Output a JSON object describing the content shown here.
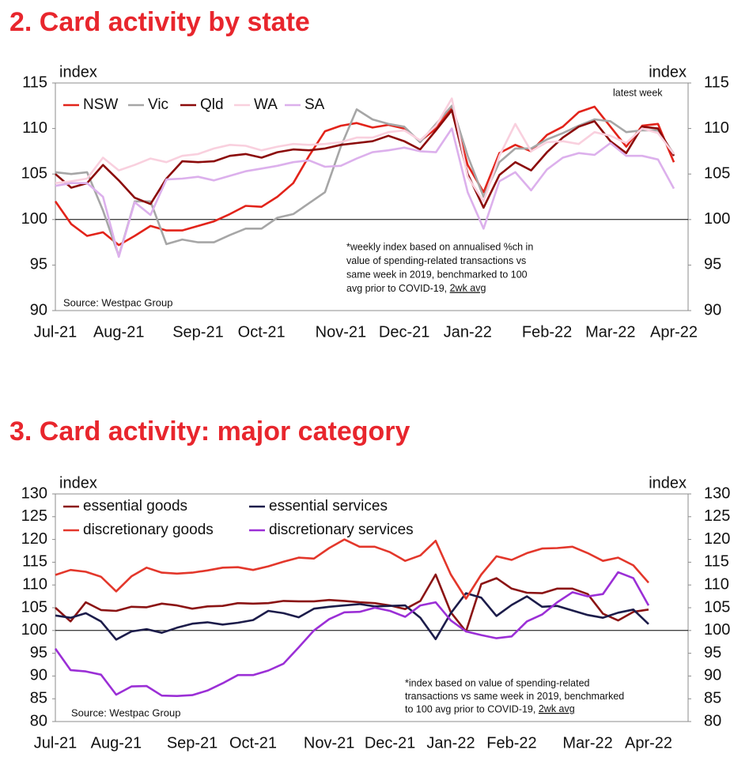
{
  "chart_data": [
    {
      "type": "line",
      "title": "2. Card activity by state",
      "ylabel": "index",
      "y2label": "index",
      "categories": [
        "Jul-21",
        null,
        null,
        null,
        "Aug-21",
        null,
        null,
        null,
        null,
        "Sep-21",
        null,
        null,
        null,
        "Oct-21",
        null,
        null,
        null,
        null,
        "Nov-21",
        null,
        null,
        null,
        "Dec-21",
        null,
        null,
        null,
        "Jan-22",
        null,
        null,
        null,
        null,
        "Feb-22",
        null,
        null,
        null,
        "Mar-22",
        null,
        null,
        null,
        "Apr-22"
      ],
      "series": [
        {
          "name": "NSW",
          "color": "#e2231a",
          "values": [
            102,
            99.5,
            98.2,
            98.6,
            97.2,
            98.2,
            99.3,
            98.8,
            98.8,
            99.3,
            99.8,
            100.6,
            101.5,
            101.4,
            102.5,
            104,
            107,
            109.7,
            110.3,
            110.6,
            110.1,
            110.4,
            110,
            108.6,
            110,
            112.3,
            106,
            103,
            107.3,
            108.2,
            107.5,
            109.3,
            110.2,
            111.8,
            112.4,
            110.2,
            108,
            110.3,
            110.5,
            106.3
          ]
        },
        {
          "name": "Vic",
          "color": "#a6a6a6",
          "values": [
            105.2,
            105,
            105.2,
            101,
            96,
            102,
            102,
            97.3,
            97.8,
            97.5,
            97.5,
            98.3,
            99,
            99,
            100.2,
            100.6,
            101.8,
            103,
            108,
            112.1,
            111,
            110.5,
            110.2,
            108.5,
            110.5,
            112.5,
            107,
            102.5,
            106.3,
            107.8,
            107.8,
            108.8,
            109.5,
            110.3,
            111,
            110.8,
            109.6,
            109.8,
            109.8,
            107.2
          ]
        },
        {
          "name": "Qld",
          "color": "#8b0a0a",
          "values": [
            105,
            103.5,
            104,
            106,
            104.3,
            102.4,
            101.7,
            104.5,
            106.4,
            106.3,
            106.4,
            107,
            107.2,
            106.8,
            107.4,
            107.7,
            107.6,
            107.8,
            108.2,
            108.4,
            108.6,
            109.2,
            108.6,
            107.7,
            109.8,
            112,
            105,
            101.3,
            104.9,
            106.3,
            105.4,
            107.4,
            109,
            110.2,
            110.8,
            108.6,
            107.3,
            110.2,
            110,
            107
          ]
        },
        {
          "name": "WA",
          "color": "#f9d0de",
          "values": [
            104,
            104.2,
            104.5,
            106.8,
            105.4,
            106,
            106.7,
            106.3,
            107,
            107.2,
            107.8,
            108.2,
            108.1,
            107.6,
            108,
            108.3,
            108.2,
            108.3,
            108.5,
            109,
            109,
            109.6,
            109.8,
            108.7,
            110.3,
            113.3,
            104.7,
            102,
            107,
            110.5,
            107.5,
            108.5,
            108.6,
            108.3,
            109.6,
            109.2,
            108.4,
            110,
            109.5,
            107.2
          ]
        },
        {
          "name": "SA",
          "color": "#dcb0ec",
          "values": [
            103.7,
            104,
            104,
            102.5,
            95.9,
            101.9,
            100.5,
            104.4,
            104.5,
            104.7,
            104.3,
            104.8,
            105.3,
            105.6,
            105.9,
            106.3,
            106.5,
            105.8,
            105.9,
            106.7,
            107.4,
            107.6,
            107.9,
            107.5,
            107.4,
            110,
            103,
            99,
            104.2,
            105.2,
            103.2,
            105.5,
            106.8,
            107.3,
            107.1,
            108.4,
            107,
            107,
            106.6,
            103.4
          ]
        }
      ],
      "ylim": [
        90,
        115
      ],
      "yticks": [
        90,
        95,
        100,
        105,
        110,
        115
      ],
      "y2lim": [
        90,
        115
      ],
      "y2ticks": [
        90,
        95,
        100,
        105,
        110,
        115
      ],
      "reference_line": 100,
      "grid": false,
      "annotation": "latest week",
      "note": [
        "*weekly index based on annualised %ch in",
        "value of spending-related transactions vs",
        "same week in 2019, benchmarked to 100",
        "avg prior to COVID-19, "
      ],
      "note_underlined": "2wk avg",
      "source": "Source: Westpac Group"
    },
    {
      "type": "line",
      "title": "3. Card activity: major category",
      "ylabel": "index",
      "y2label": "index",
      "categories": [
        "Jul-21",
        null,
        null,
        null,
        "Aug-21",
        null,
        null,
        null,
        null,
        "Sep-21",
        null,
        null,
        null,
        "Oct-21",
        null,
        null,
        null,
        null,
        "Nov-21",
        null,
        null,
        null,
        "Dec-21",
        null,
        null,
        null,
        "Jan-22",
        null,
        null,
        null,
        "Feb-22",
        null,
        null,
        null,
        null,
        "Mar-22",
        null,
        null,
        null,
        "Apr-22"
      ],
      "series": [
        {
          "name": "essential goods",
          "color": "#8b1414",
          "values": [
            105,
            102,
            106.2,
            104.5,
            104.3,
            105.2,
            105.1,
            105.9,
            105.5,
            104.8,
            105.3,
            105.4,
            106,
            105.9,
            106,
            106.5,
            106.4,
            106.4,
            106.7,
            106.5,
            106.2,
            106,
            105.5,
            104.7,
            106.5,
            112.3,
            104,
            99.8,
            110.2,
            111.5,
            109.2,
            108.3,
            108.2,
            109.2,
            109.2,
            108,
            103.7,
            102.2,
            104.1,
            104.6
          ]
        },
        {
          "name": "essential services",
          "color": "#1c1c4a",
          "values": [
            103.3,
            102.8,
            103.8,
            102,
            98,
            99.8,
            100.3,
            99.5,
            100.6,
            101.5,
            101.8,
            101.3,
            101.7,
            102.3,
            104.3,
            103.8,
            102.9,
            104.8,
            105.2,
            105.5,
            105.8,
            105.3,
            105.4,
            105.5,
            102.8,
            98.1,
            103.8,
            108.2,
            107.2,
            103.2,
            105.6,
            107.5,
            105.2,
            105.4,
            104.4,
            103.4,
            102.8,
            103.9,
            104.6,
            101.4
          ]
        },
        {
          "name": "discretionary goods",
          "color": "#e3372b",
          "values": [
            112.2,
            113.3,
            112.9,
            111.8,
            108.6,
            111.9,
            113.8,
            112.7,
            112.5,
            112.7,
            113.2,
            113.8,
            113.9,
            113.3,
            114.1,
            115.1,
            116,
            115.8,
            118.1,
            120,
            118.4,
            118.4,
            117.2,
            115.3,
            116.5,
            119.7,
            112.3,
            107,
            112.3,
            116.3,
            115.5,
            117,
            118,
            118.1,
            118.4,
            117,
            115.3,
            116,
            114.3,
            110.5
          ]
        },
        {
          "name": "discretionary services",
          "color": "#9b2fd6",
          "values": [
            96,
            91.3,
            91,
            90.3,
            85.9,
            87.7,
            87.8,
            85.7,
            85.6,
            85.8,
            86.8,
            88.4,
            90.2,
            90.2,
            91.2,
            92.7,
            96.3,
            100,
            102.5,
            104,
            104.1,
            105,
            104.3,
            103,
            105.5,
            106.2,
            102.2,
            99.8,
            99,
            98.3,
            98.7,
            102,
            103.5,
            106.2,
            108.4,
            107.5,
            108,
            112.8,
            111.5,
            105.5
          ]
        }
      ],
      "ylim": [
        80,
        130
      ],
      "yticks": [
        80,
        85,
        90,
        95,
        100,
        105,
        110,
        115,
        120,
        125,
        130
      ],
      "y2lim": [
        80,
        130
      ],
      "y2ticks": [
        80,
        85,
        90,
        95,
        100,
        105,
        110,
        115,
        120,
        125,
        130
      ],
      "reference_line": 100,
      "grid": false,
      "note": [
        "*index based on value of spending-related",
        "transactions vs same week in 2019, benchmarked",
        "to 100 avg prior to COVID-19, "
      ],
      "note_underlined": "2wk avg",
      "source": "Source: Westpac Group"
    }
  ]
}
